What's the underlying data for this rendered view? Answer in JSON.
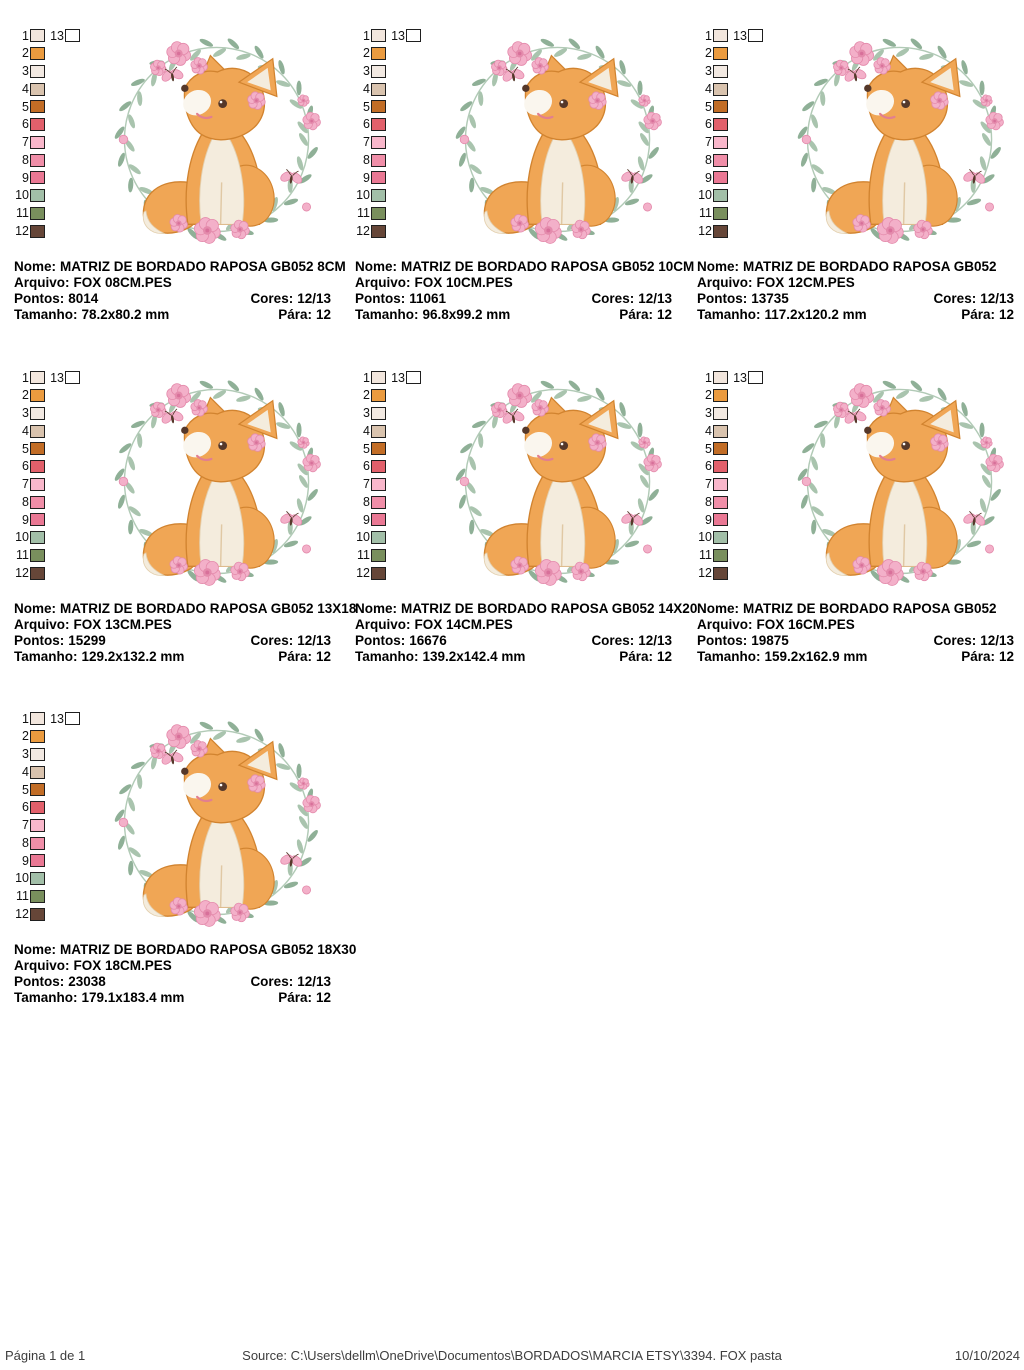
{
  "labels": {
    "nome": "Nome:",
    "arquivo": "Arquivo:",
    "pontos": "Pontos:",
    "cores": "Cores:",
    "tamanho": "Tamanho:",
    "para": "Pára:"
  },
  "palette": {
    "numbers": [
      "1",
      "2",
      "3",
      "4",
      "5",
      "6",
      "7",
      "8",
      "9",
      "10",
      "11",
      "12"
    ],
    "colors": [
      "#f2e6dd",
      "#eb9b3f",
      "#f2e9e2",
      "#d9c3ae",
      "#c26d26",
      "#e2606b",
      "#f9b7cb",
      "#f08ea8",
      "#ea7894",
      "#a2bfa8",
      "#798f5d",
      "#664638"
    ],
    "extra_number": "13",
    "extra_color": "#ffffff"
  },
  "designs": [
    {
      "name": "MATRIZ DE BORDADO RAPOSA GB052 8CM",
      "file": "FOX 08CM.PES",
      "pontos": "8014",
      "cores": "12/13",
      "tamanho": "78.2x80.2 mm",
      "para": "12"
    },
    {
      "name": "MATRIZ DE BORDADO RAPOSA GB052 10CM",
      "file": "FOX 10CM.PES",
      "pontos": "11061",
      "cores": "12/13",
      "tamanho": "96.8x99.2 mm",
      "para": "12"
    },
    {
      "name": "MATRIZ DE BORDADO RAPOSA GB052",
      "file": "FOX 12CM.PES",
      "pontos": "13735",
      "cores": "12/13",
      "tamanho": "117.2x120.2 mm",
      "para": "12"
    },
    {
      "name": "MATRIZ DE BORDADO RAPOSA GB052 13X18",
      "file": "FOX 13CM.PES",
      "pontos": "15299",
      "cores": "12/13",
      "tamanho": "129.2x132.2 mm",
      "para": "12"
    },
    {
      "name": "MATRIZ DE BORDADO RAPOSA GB052 14X20",
      "file": "FOX 14CM.PES",
      "pontos": "16676",
      "cores": "12/13",
      "tamanho": "139.2x142.4 mm",
      "para": "12"
    },
    {
      "name": "MATRIZ DE BORDADO RAPOSA GB052",
      "file": "FOX 16CM.PES",
      "pontos": "19875",
      "cores": "12/13",
      "tamanho": "159.2x162.9 mm",
      "para": "12"
    },
    {
      "name": "MATRIZ DE BORDADO RAPOSA GB052 18X30",
      "file": "FOX 18CM.PES",
      "pontos": "23038",
      "cores": "12/13",
      "tamanho": "179.1x183.4 mm",
      "para": "12"
    }
  ],
  "footer": {
    "page_label": "Página 1 de 1",
    "source": "Source: C:\\Users\\dellm\\OneDrive\\Documentos\\BORDADOS\\MARCIA ETSY\\3394. FOX pasta",
    "date": "10/10/2024"
  },
  "art_colors": {
    "fox_orange": "#f0a655",
    "fox_orange_dark": "#d1832f",
    "fox_cream": "#f4ecdd",
    "fox_white": "#faf6ee",
    "fox_brown": "#55382a",
    "blush_pink": "#e27f8f",
    "flower_pink": "#f3b0c9",
    "flower_pink_dark": "#e48bac",
    "flower_pink_deep": "#d8709a",
    "leaf_green": "#a9c4ae",
    "leaf_green_dark": "#8fb097"
  }
}
